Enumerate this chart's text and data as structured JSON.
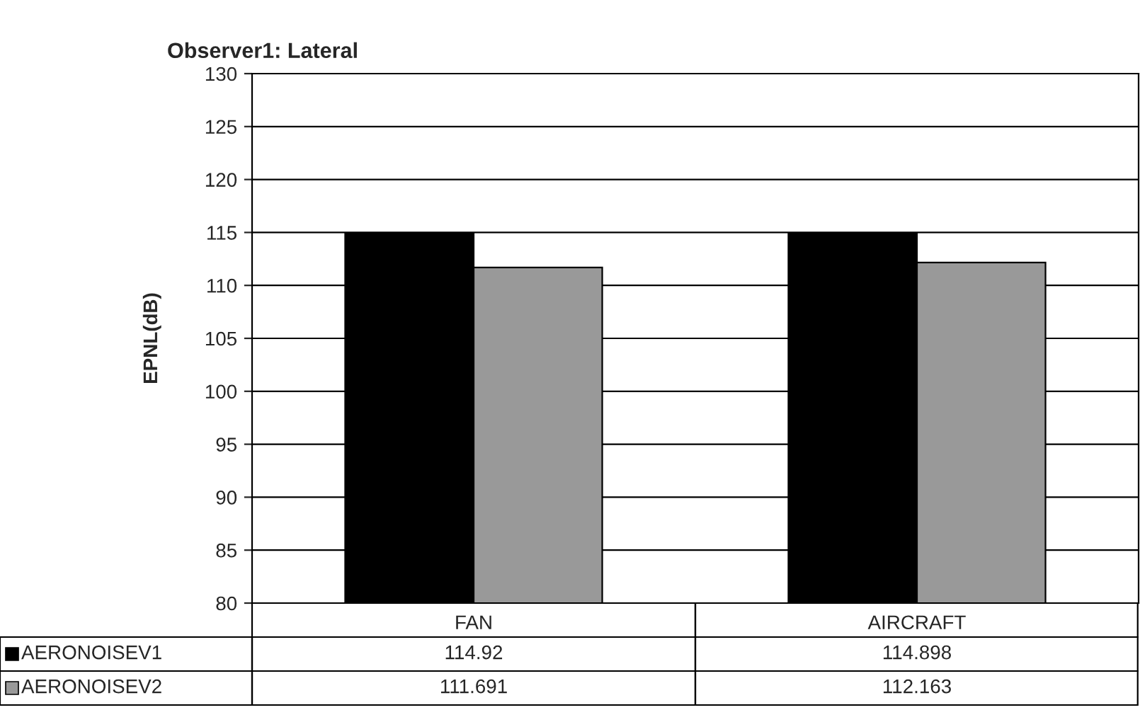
{
  "chart_data": {
    "type": "bar",
    "title": "Observer1: Lateral",
    "ylabel": "EPNL(dB)",
    "categories": [
      "FAN",
      "AIRCRAFT"
    ],
    "series": [
      {
        "name": "AERONOISEV1",
        "color": "#000000",
        "values": [
          114.92,
          114.898
        ]
      },
      {
        "name": "AERONOISEV2",
        "color": "#999999",
        "values": [
          111.691,
          112.163
        ]
      }
    ],
    "ylim": [
      80,
      130
    ],
    "yticks": [
      80,
      85,
      90,
      95,
      100,
      105,
      110,
      115,
      120,
      125,
      130
    ],
    "grid": "y",
    "data_labels": true,
    "legend": "bottom left"
  }
}
